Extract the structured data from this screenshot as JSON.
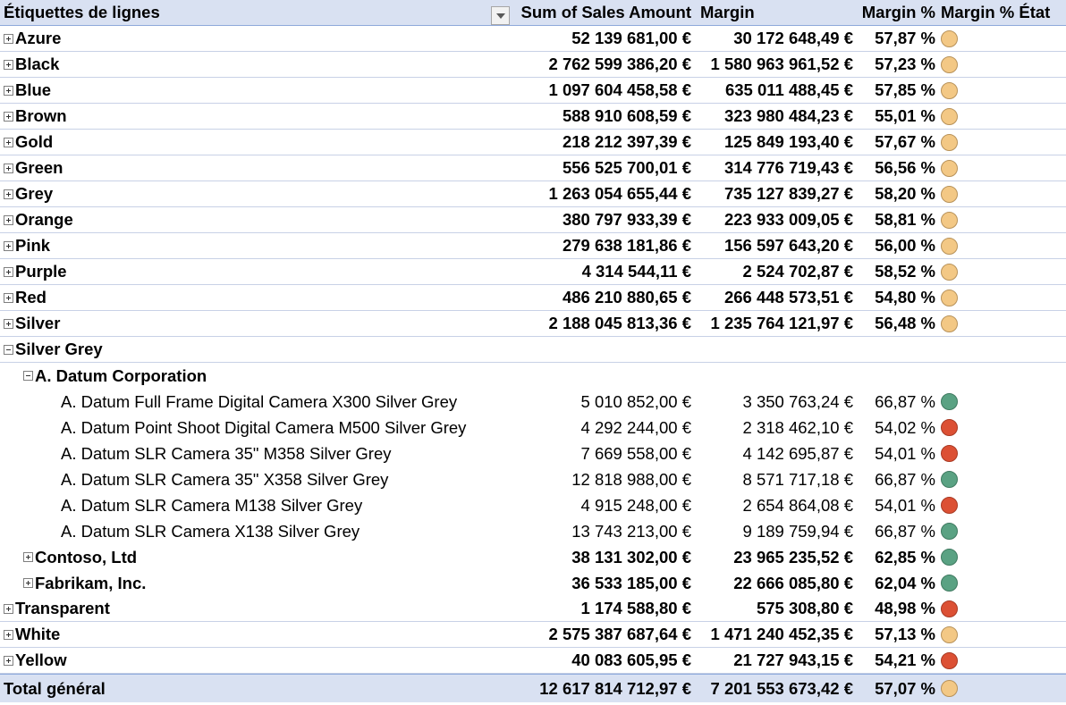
{
  "header": {
    "row_labels": "Étiquettes de lignes",
    "sales": "Sum of Sales Amount",
    "margin": "Margin",
    "margin_pct": "Margin % ",
    "margin_state": "Margin % État"
  },
  "state_colors": {
    "yellow": {
      "fill": "#f3c885",
      "stroke": "#b8925a"
    },
    "green": {
      "fill": "#5aa283",
      "stroke": "#3f7a60"
    },
    "red": {
      "fill": "#dc5034",
      "stroke": "#a83a24"
    }
  },
  "rows": [
    {
      "label": "Azure",
      "sales": "52 139 681,00 €",
      "margin": "30 172 648,49 €",
      "pct": "57,87 %",
      "state": "yellow",
      "level": 0,
      "toggle": "plus",
      "bold": true
    },
    {
      "label": "Black",
      "sales": "2 762 599 386,20 €",
      "margin": "1 580 963 961,52 €",
      "pct": "57,23 %",
      "state": "yellow",
      "level": 0,
      "toggle": "plus",
      "bold": true
    },
    {
      "label": "Blue",
      "sales": "1 097 604 458,58 €",
      "margin": "635 011 488,45 €",
      "pct": "57,85 %",
      "state": "yellow",
      "level": 0,
      "toggle": "plus",
      "bold": true
    },
    {
      "label": "Brown",
      "sales": "588 910 608,59 €",
      "margin": "323 980 484,23 €",
      "pct": "55,01 %",
      "state": "yellow",
      "level": 0,
      "toggle": "plus",
      "bold": true
    },
    {
      "label": "Gold",
      "sales": "218 212 397,39 €",
      "margin": "125 849 193,40 €",
      "pct": "57,67 %",
      "state": "yellow",
      "level": 0,
      "toggle": "plus",
      "bold": true
    },
    {
      "label": "Green",
      "sales": "556 525 700,01 €",
      "margin": "314 776 719,43 €",
      "pct": "56,56 %",
      "state": "yellow",
      "level": 0,
      "toggle": "plus",
      "bold": true
    },
    {
      "label": "Grey",
      "sales": "1 263 054 655,44 €",
      "margin": "735 127 839,27 €",
      "pct": "58,20 %",
      "state": "yellow",
      "level": 0,
      "toggle": "plus",
      "bold": true
    },
    {
      "label": "Orange",
      "sales": "380 797 933,39 €",
      "margin": "223 933 009,05 €",
      "pct": "58,81 %",
      "state": "yellow",
      "level": 0,
      "toggle": "plus",
      "bold": true
    },
    {
      "label": "Pink",
      "sales": "279 638 181,86 €",
      "margin": "156 597 643,20 €",
      "pct": "56,00 %",
      "state": "yellow",
      "level": 0,
      "toggle": "plus",
      "bold": true
    },
    {
      "label": "Purple",
      "sales": "4 314 544,11 €",
      "margin": "2 524 702,87 €",
      "pct": "58,52 %",
      "state": "yellow",
      "level": 0,
      "toggle": "plus",
      "bold": true
    },
    {
      "label": "Red",
      "sales": "486 210 880,65 €",
      "margin": "266 448 573,51 €",
      "pct": "54,80 %",
      "state": "yellow",
      "level": 0,
      "toggle": "plus",
      "bold": true
    },
    {
      "label": "Silver",
      "sales": "2 188 045 813,36 €",
      "margin": "1 235 764 121,97 €",
      "pct": "56,48 %",
      "state": "yellow",
      "level": 0,
      "toggle": "plus",
      "bold": true
    },
    {
      "label": "Silver Grey",
      "sales": "",
      "margin": "",
      "pct": "",
      "state": "",
      "level": 0,
      "toggle": "minus",
      "bold": true
    },
    {
      "label": "A. Datum Corporation",
      "sales": "",
      "margin": "",
      "pct": "",
      "state": "",
      "level": 1,
      "toggle": "minus",
      "bold": true,
      "noborder": true
    },
    {
      "label": "A. Datum Full Frame Digital Camera X300 Silver Grey",
      "sales": "5 010 852,00 €",
      "margin": "3 350 763,24 €",
      "pct": "66,87 %",
      "state": "green",
      "level": 2,
      "toggle": "",
      "bold": false,
      "noborder": true
    },
    {
      "label": "A. Datum Point Shoot Digital Camera M500 Silver Grey",
      "sales": "4 292 244,00 €",
      "margin": "2 318 462,10 €",
      "pct": "54,02 %",
      "state": "red",
      "level": 2,
      "toggle": "",
      "bold": false,
      "noborder": true
    },
    {
      "label": "A. Datum SLR Camera 35\" M358 Silver Grey",
      "sales": "7 669 558,00 €",
      "margin": "4 142 695,87 €",
      "pct": "54,01 %",
      "state": "red",
      "level": 2,
      "toggle": "",
      "bold": false,
      "noborder": true
    },
    {
      "label": "A. Datum SLR Camera 35\" X358 Silver Grey",
      "sales": "12 818 988,00 €",
      "margin": "8 571 717,18 €",
      "pct": "66,87 %",
      "state": "green",
      "level": 2,
      "toggle": "",
      "bold": false,
      "noborder": true
    },
    {
      "label": "A. Datum SLR Camera M138 Silver Grey",
      "sales": "4 915 248,00 €",
      "margin": "2 654 864,08 €",
      "pct": "54,01 %",
      "state": "red",
      "level": 2,
      "toggle": "",
      "bold": false,
      "noborder": true
    },
    {
      "label": "A. Datum SLR Camera X138 Silver Grey",
      "sales": "13 743 213,00 €",
      "margin": "9 189 759,94 €",
      "pct": "66,87 %",
      "state": "green",
      "level": 2,
      "toggle": "",
      "bold": false,
      "noborder": true
    },
    {
      "label": "Contoso, Ltd",
      "sales": "38 131 302,00 €",
      "margin": "23 965 235,52 €",
      "pct": "62,85 %",
      "state": "green",
      "level": 1,
      "toggle": "plus",
      "bold": true,
      "noborder": true
    },
    {
      "label": "Fabrikam, Inc.",
      "sales": "36 533 185,00 €",
      "margin": "22 666 085,80 €",
      "pct": "62,04 %",
      "state": "green",
      "level": 1,
      "toggle": "plus",
      "bold": true,
      "noborder": true
    },
    {
      "label": "Transparent",
      "sales": "1 174 588,80 €",
      "margin": "575 308,80 €",
      "pct": "48,98 %",
      "state": "red",
      "level": 0,
      "toggle": "plus",
      "bold": true
    },
    {
      "label": "White",
      "sales": "2 575 387 687,64 €",
      "margin": "1 471 240 452,35 €",
      "pct": "57,13 %",
      "state": "yellow",
      "level": 0,
      "toggle": "plus",
      "bold": true
    },
    {
      "label": "Yellow",
      "sales": "40 083 605,95 €",
      "margin": "21 727 943,15 €",
      "pct": "54,21 %",
      "state": "red",
      "level": 0,
      "toggle": "plus",
      "bold": true
    }
  ],
  "total": {
    "label": "Total général",
    "sales": "12 617 814 712,97 €",
    "margin": "7 201 553 673,42 €",
    "pct": "57,07 %",
    "state": "yellow"
  }
}
